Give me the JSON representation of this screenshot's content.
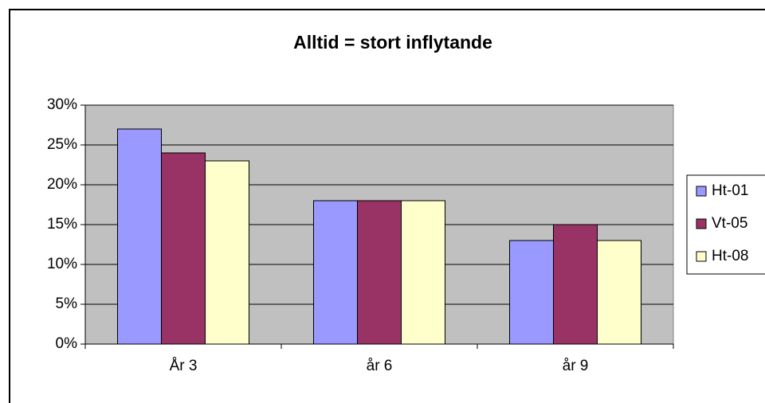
{
  "chart_data": {
    "type": "bar",
    "title": "Alltid = stort inflytande",
    "categories": [
      "År 3",
      "år 6",
      "år 9"
    ],
    "series": [
      {
        "name": "Ht-01",
        "color": "#9999ff",
        "values": [
          27,
          18,
          13
        ]
      },
      {
        "name": "Vt-05",
        "color": "#993366",
        "values": [
          24,
          18,
          15
        ]
      },
      {
        "name": "Ht-08",
        "color": "#ffffcc",
        "values": [
          23,
          18,
          13
        ]
      }
    ],
    "ylim": [
      0,
      30
    ],
    "yticks": [
      {
        "value": 0,
        "label": "0%"
      },
      {
        "value": 5,
        "label": "5%"
      },
      {
        "value": 10,
        "label": "10%"
      },
      {
        "value": 15,
        "label": "15%"
      },
      {
        "value": 20,
        "label": "20%"
      },
      {
        "value": 25,
        "label": "25%"
      },
      {
        "value": 30,
        "label": "30%"
      }
    ],
    "grid": true,
    "legend": "right"
  }
}
